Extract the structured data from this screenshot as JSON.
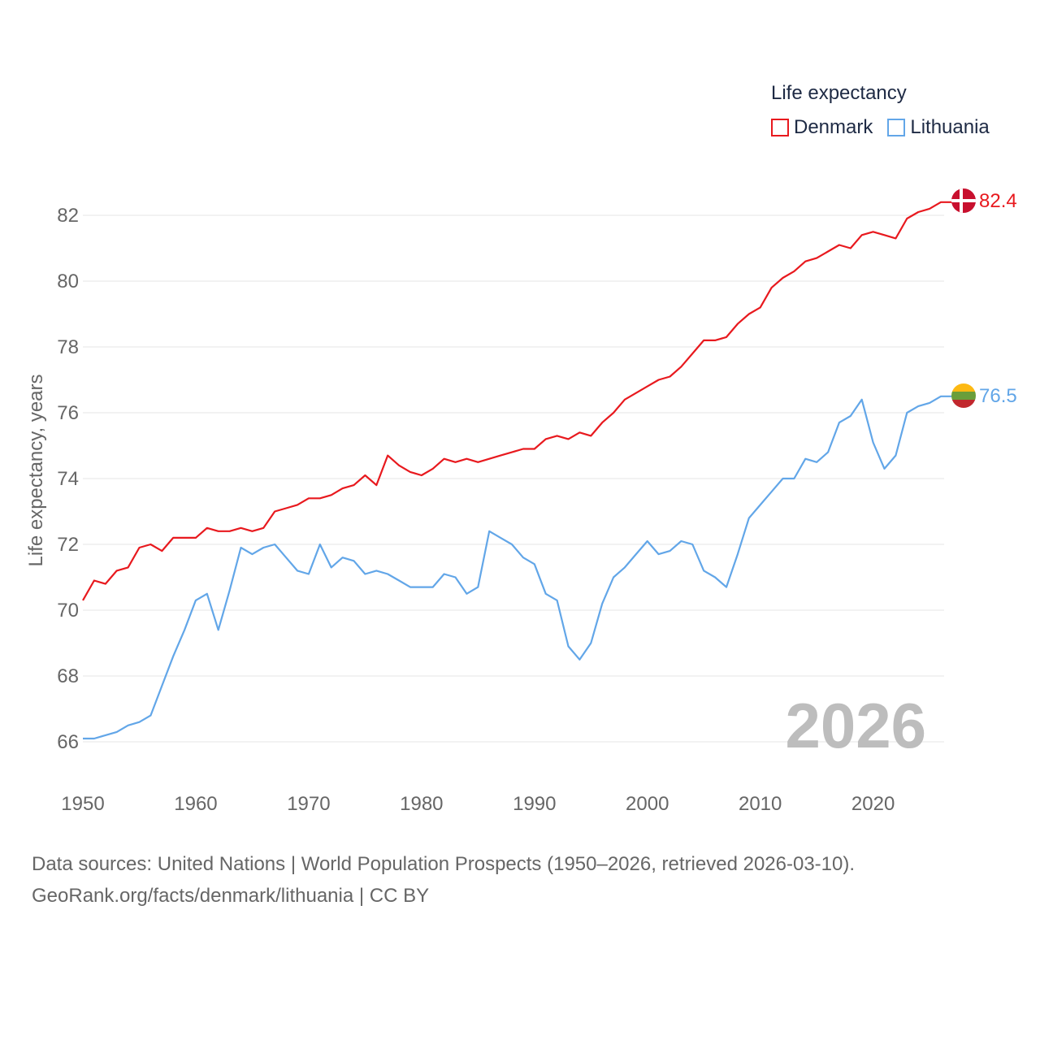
{
  "legend": {
    "title": "Life expectancy",
    "series": [
      {
        "name": "Denmark",
        "color": "#e8191e"
      },
      {
        "name": "Lithuania",
        "color": "#62a6e8"
      }
    ]
  },
  "source": {
    "line1": "Data sources: United Nations | World Population Prospects (1950–2026, retrieved 2026-03-10).",
    "line2": "GeoRank.org/facts/denmark/lithuania | CC BY"
  },
  "chart_data": {
    "type": "line",
    "title": "Life expectancy",
    "ylabel": "Life expectancy, years",
    "xlabel": "",
    "xlim": [
      1950,
      2026
    ],
    "ylim": [
      65,
      83.5
    ],
    "x_ticks": [
      1950,
      1960,
      1970,
      1980,
      1990,
      2000,
      2010,
      2020
    ],
    "y_ticks": [
      66,
      68,
      70,
      72,
      74,
      76,
      78,
      80,
      82
    ],
    "year_display": "2026",
    "end_labels": [
      {
        "series": "Denmark",
        "text": "82.4",
        "icon": "denmark-flag-icon"
      },
      {
        "series": "Lithuania",
        "text": "76.5",
        "icon": "lithuania-flag-icon"
      }
    ],
    "x": [
      1950,
      1951,
      1952,
      1953,
      1954,
      1955,
      1956,
      1957,
      1958,
      1959,
      1960,
      1961,
      1962,
      1963,
      1964,
      1965,
      1966,
      1967,
      1968,
      1969,
      1970,
      1971,
      1972,
      1973,
      1974,
      1975,
      1976,
      1977,
      1978,
      1979,
      1980,
      1981,
      1982,
      1983,
      1984,
      1985,
      1986,
      1987,
      1988,
      1989,
      1990,
      1991,
      1992,
      1993,
      1994,
      1995,
      1996,
      1997,
      1998,
      1999,
      2000,
      2001,
      2002,
      2003,
      2004,
      2005,
      2006,
      2007,
      2008,
      2009,
      2010,
      2011,
      2012,
      2013,
      2014,
      2015,
      2016,
      2017,
      2018,
      2019,
      2020,
      2021,
      2022,
      2023,
      2024,
      2025,
      2026
    ],
    "series": [
      {
        "name": "Denmark",
        "color": "#e8191e",
        "values": [
          70.3,
          70.9,
          70.8,
          71.2,
          71.3,
          71.9,
          72.0,
          71.8,
          72.2,
          72.2,
          72.2,
          72.5,
          72.4,
          72.4,
          72.5,
          72.4,
          72.5,
          73.0,
          73.1,
          73.2,
          73.4,
          73.4,
          73.5,
          73.7,
          73.8,
          74.1,
          73.8,
          74.7,
          74.4,
          74.2,
          74.1,
          74.3,
          74.6,
          74.5,
          74.6,
          74.5,
          74.6,
          74.7,
          74.8,
          74.9,
          74.9,
          75.2,
          75.3,
          75.2,
          75.4,
          75.3,
          75.7,
          76.0,
          76.4,
          76.6,
          76.8,
          77.0,
          77.1,
          77.4,
          77.8,
          78.2,
          78.2,
          78.3,
          78.7,
          79.0,
          79.2,
          79.8,
          80.1,
          80.3,
          80.6,
          80.7,
          80.9,
          81.1,
          81.0,
          81.4,
          81.5,
          81.4,
          81.3,
          81.9,
          82.1,
          82.2,
          82.4
        ]
      },
      {
        "name": "Lithuania",
        "color": "#62a6e8",
        "values": [
          66.1,
          66.1,
          66.2,
          66.3,
          66.5,
          66.6,
          66.8,
          67.7,
          68.6,
          69.4,
          70.3,
          70.5,
          69.4,
          70.6,
          71.9,
          71.7,
          71.9,
          72.0,
          71.6,
          71.2,
          71.1,
          72.0,
          71.3,
          71.6,
          71.5,
          71.1,
          71.2,
          71.1,
          70.9,
          70.7,
          70.7,
          70.7,
          71.1,
          71.0,
          70.5,
          70.7,
          72.4,
          72.2,
          72.0,
          71.6,
          71.4,
          70.5,
          70.3,
          68.9,
          68.5,
          69.0,
          70.2,
          71.0,
          71.3,
          71.7,
          72.1,
          71.7,
          71.8,
          72.1,
          72.0,
          71.2,
          71.0,
          70.7,
          71.7,
          72.8,
          73.2,
          73.6,
          74.0,
          74.0,
          74.6,
          74.5,
          74.8,
          75.7,
          75.9,
          76.4,
          75.1,
          74.3,
          74.7,
          76.0,
          76.2,
          76.3,
          76.5
        ]
      }
    ]
  }
}
